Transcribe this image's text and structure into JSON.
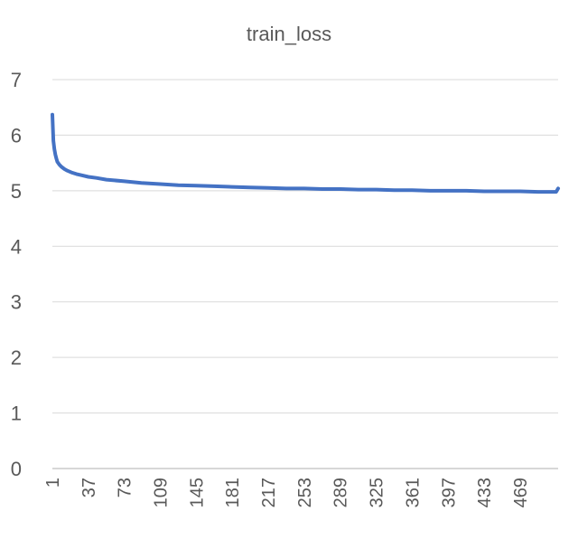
{
  "chart_data": {
    "type": "line",
    "title": "train_loss",
    "xlabel": "",
    "ylabel": "",
    "ylim": [
      0,
      7
    ],
    "yticks": [
      0,
      1,
      2,
      3,
      4,
      5,
      6,
      7
    ],
    "xlim": [
      1,
      507
    ],
    "xticks": [
      1,
      37,
      73,
      109,
      145,
      181,
      217,
      253,
      289,
      325,
      361,
      397,
      433,
      469
    ],
    "grid": true,
    "legend": "none",
    "series_color": "#4472c4",
    "series": [
      {
        "x": [
          1,
          2,
          3,
          4,
          5,
          6,
          8,
          10,
          13,
          16,
          20,
          25,
          30,
          37,
          45,
          55,
          73,
          90,
          109,
          127,
          145,
          163,
          181,
          199,
          217,
          235,
          253,
          271,
          289,
          307,
          325,
          343,
          361,
          379,
          397,
          415,
          433,
          451,
          469,
          487,
          505,
          507
        ],
        "y": [
          6.37,
          5.9,
          5.75,
          5.65,
          5.58,
          5.52,
          5.47,
          5.43,
          5.39,
          5.36,
          5.33,
          5.3,
          5.28,
          5.25,
          5.23,
          5.2,
          5.17,
          5.14,
          5.12,
          5.1,
          5.09,
          5.08,
          5.07,
          5.06,
          5.05,
          5.04,
          5.04,
          5.03,
          5.03,
          5.02,
          5.02,
          5.01,
          5.01,
          5.0,
          5.0,
          5.0,
          4.99,
          4.99,
          4.99,
          4.98,
          4.98,
          5.04
        ]
      }
    ]
  }
}
